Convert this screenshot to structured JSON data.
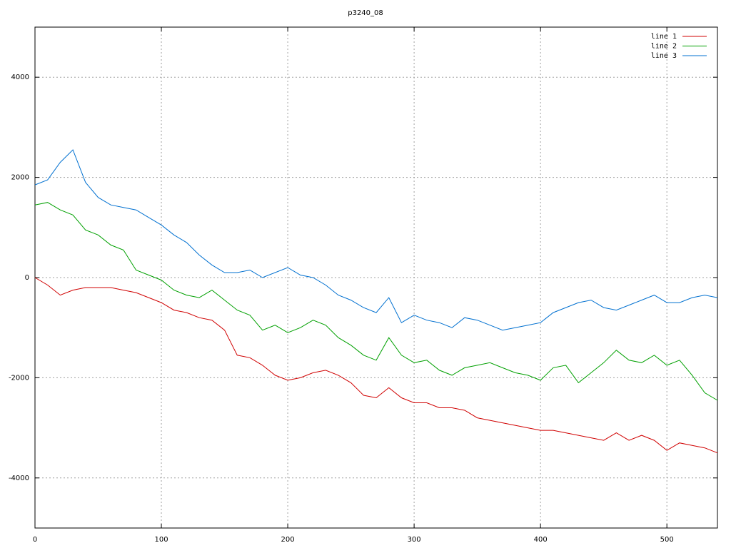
{
  "chart_data": {
    "type": "line",
    "title": "p3240_08",
    "x": [
      0,
      10,
      20,
      30,
      40,
      50,
      60,
      70,
      80,
      90,
      100,
      110,
      120,
      130,
      140,
      150,
      160,
      170,
      180,
      190,
      200,
      210,
      220,
      230,
      240,
      250,
      260,
      270,
      280,
      290,
      300,
      310,
      320,
      330,
      340,
      350,
      360,
      370,
      380,
      390,
      400,
      410,
      420,
      430,
      440,
      450,
      460,
      470,
      480,
      490,
      500,
      510,
      520,
      530,
      540
    ],
    "series": [
      {
        "name": "line 1",
        "color": "#d00000",
        "values": [
          0,
          -150,
          -350,
          -250,
          -200,
          -200,
          -200,
          -250,
          -300,
          -400,
          -500,
          -650,
          -700,
          -800,
          -850,
          -1050,
          -1550,
          -1600,
          -1750,
          -1950,
          -2050,
          -2000,
          -1900,
          -1850,
          -1950,
          -2100,
          -2350,
          -2400,
          -2200,
          -2400,
          -2500,
          -2500,
          -2600,
          -2600,
          -2650,
          -2800,
          -2850,
          -2900,
          -2950,
          -3000,
          -3050,
          -3050,
          -3100,
          -3150,
          -3200,
          -3250,
          -3100,
          -3250,
          -3150,
          -3250,
          -3450,
          -3300,
          -3350,
          -3400,
          -3500
        ]
      },
      {
        "name": "line 2",
        "color": "#00a000",
        "values": [
          1450,
          1500,
          1350,
          1250,
          950,
          850,
          650,
          550,
          150,
          50,
          -50,
          -250,
          -350,
          -400,
          -250,
          -450,
          -650,
          -750,
          -1050,
          -950,
          -1100,
          -1000,
          -850,
          -950,
          -1200,
          -1350,
          -1550,
          -1650,
          -1200,
          -1550,
          -1700,
          -1650,
          -1850,
          -1950,
          -1800,
          -1750,
          -1700,
          -1800,
          -1900,
          -1950,
          -2050,
          -1800,
          -1750,
          -2100,
          -1900,
          -1700,
          -1450,
          -1650,
          -1700,
          -1550,
          -1750,
          -1650,
          -1950,
          -2300,
          -2450
        ]
      },
      {
        "name": "line 3",
        "color": "#0070d0",
        "values": [
          1850,
          1950,
          2300,
          2550,
          1900,
          1600,
          1450,
          1400,
          1350,
          1200,
          1050,
          850,
          700,
          450,
          250,
          100,
          100,
          150,
          0,
          100,
          200,
          50,
          0,
          -150,
          -350,
          -450,
          -600,
          -700,
          -400,
          -900,
          -750,
          -850,
          -900,
          -1000,
          -800,
          -850,
          -950,
          -1050,
          -1000,
          -950,
          -900,
          -700,
          -600,
          -500,
          -450,
          -600,
          -650,
          -550,
          -450,
          -350,
          -500,
          -500,
          -400,
          -350,
          -400
        ]
      }
    ],
    "xlim": [
      0,
      540
    ],
    "ylim": [
      -5000,
      5000
    ],
    "xticks": [
      0,
      100,
      200,
      300,
      400,
      500
    ],
    "yticks": [
      -4000,
      -2000,
      0,
      2000,
      4000
    ],
    "grid": true,
    "legend": "top-right"
  }
}
